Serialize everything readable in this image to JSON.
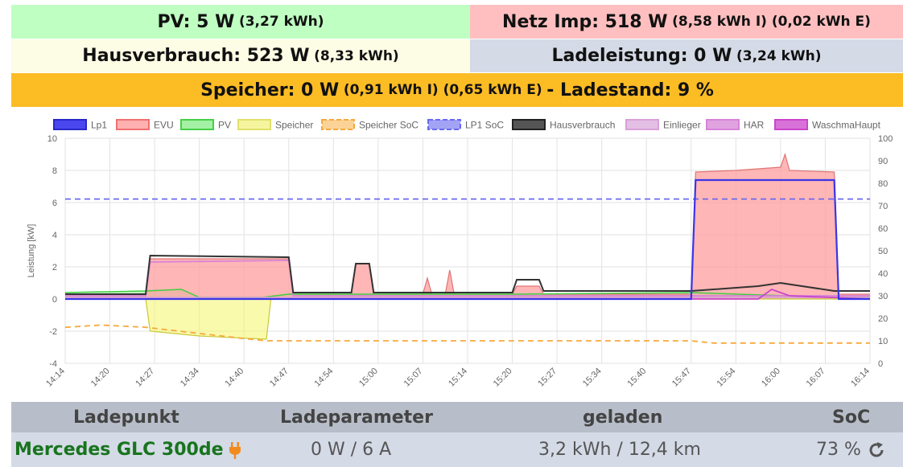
{
  "tiles": {
    "pv": {
      "main": "PV: 5 W",
      "sub": "(3,27 kWh)"
    },
    "netz": {
      "main": "Netz Imp: 518 W",
      "sub": "(8,58 kWh I) (0,02 kWh E)"
    },
    "haus": {
      "main": "Hausverbrauch: 523 W",
      "sub": "(8,33 kWh)"
    },
    "lade": {
      "main": "Ladeleistung: 0 W",
      "sub": "(3,24 kWh)"
    },
    "speicher": {
      "main": "Speicher: 0 W",
      "sub": "(0,91 kWh I) (0,65 kWh E)",
      "tail": "- Ladestand: 9 %"
    }
  },
  "chart_data": {
    "type": "area",
    "ylabel": "Leistung [kW]",
    "ylim": [
      -4,
      10
    ],
    "y2lim": [
      0,
      100
    ],
    "yticks": [
      "10",
      "8",
      "6",
      "4",
      "2",
      "0",
      "-2",
      "-4"
    ],
    "y2ticks": [
      "100",
      "90",
      "80",
      "70",
      "60",
      "50",
      "40",
      "30",
      "20",
      "10",
      "0"
    ],
    "xticks": [
      "14:14",
      "14:20",
      "14:27",
      "14:34",
      "14:40",
      "14:47",
      "14:54",
      "15:00",
      "15:07",
      "15:14",
      "15:20",
      "15:27",
      "15:34",
      "15:40",
      "15:47",
      "15:54",
      "16:00",
      "16:07",
      "16:14"
    ],
    "grid": true,
    "legend_position": "top",
    "series": [
      {
        "name": "Lp1",
        "color": "#3a35e8",
        "values": [
          [
            0,
            0
          ],
          [
            140,
            0
          ],
          [
            141,
            7.4
          ],
          [
            172,
            7.4
          ],
          [
            173,
            0
          ],
          [
            180,
            0
          ]
        ]
      },
      {
        "name": "EVU",
        "color": "#ff9e9e",
        "values": [
          [
            0,
            0.3
          ],
          [
            18,
            0.3
          ],
          [
            19,
            2.5
          ],
          [
            50,
            2.5
          ],
          [
            51,
            0.3
          ],
          [
            64,
            0.3
          ],
          [
            65,
            2.2
          ],
          [
            68,
            2.2
          ],
          [
            69,
            0.3
          ],
          [
            80,
            0.3
          ],
          [
            81,
            1.3
          ],
          [
            82,
            0.3
          ],
          [
            85,
            0.3
          ],
          [
            86,
            1.8
          ],
          [
            87,
            0.3
          ],
          [
            100,
            0.3
          ],
          [
            101,
            0.8
          ],
          [
            106,
            0.8
          ],
          [
            107,
            0.3
          ],
          [
            140,
            0.3
          ],
          [
            141,
            7.9
          ],
          [
            150,
            8.0
          ],
          [
            160,
            8.2
          ],
          [
            161,
            9.0
          ],
          [
            162,
            8.0
          ],
          [
            172,
            7.9
          ],
          [
            173,
            0.3
          ],
          [
            180,
            0.3
          ]
        ]
      },
      {
        "name": "PV",
        "color": "#3fcf3f",
        "values": [
          [
            0,
            0.4
          ],
          [
            18,
            0.5
          ],
          [
            26,
            0.6
          ],
          [
            30,
            0.1
          ],
          [
            44,
            0.1
          ],
          [
            50,
            0.3
          ],
          [
            100,
            0.3
          ],
          [
            140,
            0.4
          ],
          [
            172,
            0.1
          ],
          [
            180,
            0.1
          ]
        ]
      },
      {
        "name": "Speicher",
        "color": "#f5f56a",
        "values": [
          [
            0,
            0
          ],
          [
            18,
            0
          ],
          [
            19,
            -2.0
          ],
          [
            30,
            -2.3
          ],
          [
            45,
            -2.5
          ],
          [
            46,
            0
          ],
          [
            180,
            0
          ]
        ]
      },
      {
        "name": "Speicher SoC",
        "color": "#f7a93c",
        "axis": "right",
        "values": [
          [
            0,
            16
          ],
          [
            8,
            17
          ],
          [
            18,
            16
          ],
          [
            40,
            11
          ],
          [
            45,
            10
          ],
          [
            140,
            10
          ],
          [
            145,
            9
          ],
          [
            180,
            9
          ]
        ]
      },
      {
        "name": "LP1 SoC",
        "color": "#6a6af0",
        "axis": "right",
        "values": [
          [
            0,
            73
          ],
          [
            180,
            73
          ]
        ]
      },
      {
        "name": "Hausverbrauch",
        "color": "#333333",
        "values": [
          [
            0,
            0.3
          ],
          [
            18,
            0.3
          ],
          [
            19,
            2.7
          ],
          [
            50,
            2.6
          ],
          [
            51,
            0.4
          ],
          [
            64,
            0.4
          ],
          [
            65,
            2.2
          ],
          [
            68,
            2.2
          ],
          [
            69,
            0.4
          ],
          [
            100,
            0.4
          ],
          [
            101,
            1.2
          ],
          [
            106,
            1.2
          ],
          [
            107,
            0.5
          ],
          [
            140,
            0.5
          ],
          [
            155,
            0.8
          ],
          [
            160,
            1.0
          ],
          [
            172,
            0.5
          ],
          [
            180,
            0.5
          ]
        ]
      },
      {
        "name": "Einlieger",
        "color": "#d9a0d9",
        "values": [
          [
            0,
            0.1
          ],
          [
            180,
            0.1
          ]
        ]
      },
      {
        "name": "HAR",
        "color": "#d883d8",
        "values": [
          [
            0,
            0.2
          ],
          [
            18,
            0.2
          ],
          [
            19,
            2.3
          ],
          [
            50,
            2.4
          ],
          [
            51,
            0.2
          ],
          [
            180,
            0.2
          ]
        ]
      },
      {
        "name": "WaschmaHaupt",
        "color": "#cc44cc",
        "values": [
          [
            0,
            0
          ],
          [
            155,
            0
          ],
          [
            158,
            0.6
          ],
          [
            162,
            0.2
          ],
          [
            180,
            0
          ]
        ]
      }
    ]
  },
  "ladepunkt": {
    "headers": {
      "ladepunkt": "Ladepunkt",
      "parameter": "Ladeparameter",
      "geladen": "geladen",
      "soc": "SoC"
    },
    "row": {
      "vehicle": "Mercedes GLC 300de",
      "parameter": "0 W / 6 A",
      "geladen": "3,2 kWh / 12,4 km",
      "soc": "73 %"
    },
    "icons": {
      "vehicle": "plug-icon",
      "soc": "refresh-icon"
    }
  }
}
